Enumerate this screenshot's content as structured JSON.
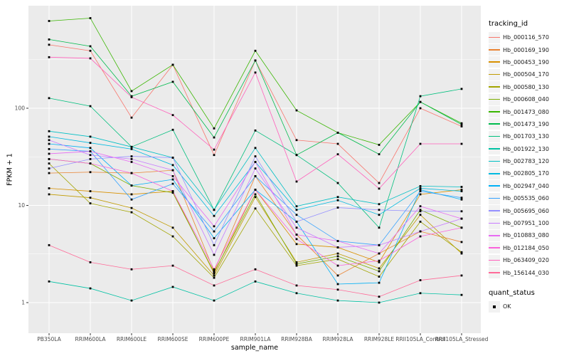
{
  "chart_data": {
    "type": "line",
    "title": "",
    "xlabel": "sample_name",
    "ylabel": "FPKM + 1",
    "y_scale": "log10",
    "y_ticks": [
      1,
      10,
      100
    ],
    "y_minor_ticks": [
      3.162,
      31.62,
      316.2
    ],
    "ylim": [
      1,
      1150
    ],
    "grid": "on",
    "legend_position": "right",
    "panel_bg": "#EBEBEB",
    "grid_color": "#FFFFFF",
    "marker": {
      "shape": "square",
      "color": "#000000",
      "legend_label": "OK"
    },
    "categories": [
      "PB350LA",
      "RRIM600LA",
      "RRIM600LE",
      "RRIM600SE",
      "RRIM600PE",
      "RRIM901LA",
      "RRIM928BA",
      "RRIM928LA",
      "RRIM928LE",
      "RRII105LA_Control",
      "RRII105LA_Stressed"
    ],
    "series": [
      {
        "name": "Hb_000116_570",
        "color": "#F8766D",
        "values": [
          450,
          390,
          80,
          280,
          33,
          310,
          47,
          43,
          17,
          100,
          65
        ]
      },
      {
        "name": "Hb_000169_190",
        "color": "#EA8331",
        "values": [
          21.5,
          22,
          21.5,
          23,
          2.1,
          20,
          5,
          1.9,
          3.2,
          5.4,
          4.2
        ]
      },
      {
        "name": "Hb_000453_190",
        "color": "#D89000",
        "values": [
          15,
          14,
          13,
          14,
          2.0,
          14.5,
          4.0,
          3.7,
          2.6,
          13,
          14.5
        ]
      },
      {
        "name": "Hb_000504_170",
        "color": "#C09B00",
        "values": [
          13,
          12,
          9.4,
          5.9,
          1.9,
          12.2,
          2.6,
          3.2,
          2.25,
          8,
          3.2
        ]
      },
      {
        "name": "Hb_000580_130",
        "color": "#A3A500",
        "values": [
          27,
          10.5,
          8.5,
          4.8,
          1.8,
          9.3,
          2.4,
          2.8,
          1.85,
          6.8,
          3.3
        ]
      },
      {
        "name": "Hb_000608_040",
        "color": "#7CAE00",
        "values": [
          30,
          27,
          16,
          13.5,
          2.05,
          13,
          2.5,
          3.0,
          2.1,
          9,
          5.9
        ]
      },
      {
        "name": "Hb_001473_080",
        "color": "#39B600",
        "values": [
          790,
          845,
          150,
          280,
          62,
          390,
          95,
          56,
          42,
          116,
          70
        ]
      },
      {
        "name": "Hb_001473_190",
        "color": "#00BB4E",
        "values": [
          510,
          434,
          133,
          187,
          50,
          310,
          33,
          56,
          33.6,
          116,
          68
        ]
      },
      {
        "name": "Hb_001703_130",
        "color": "#00BF7D",
        "values": [
          127,
          105,
          40,
          60,
          9,
          59,
          33,
          17,
          5.9,
          133,
          158
        ]
      },
      {
        "name": "Hb_001922_130",
        "color": "#00C1A3",
        "values": [
          1.65,
          1.4,
          1.05,
          1.45,
          1.05,
          1.65,
          1.25,
          1.05,
          1.0,
          1.25,
          1.2
        ]
      },
      {
        "name": "Hb_002783_120",
        "color": "#00BFC4",
        "values": [
          58,
          51,
          40,
          31,
          9,
          39,
          9.8,
          12.2,
          10.3,
          15.8,
          15.5
        ]
      },
      {
        "name": "Hb_002805_170",
        "color": "#00BAE0",
        "values": [
          51,
          44,
          38,
          26,
          7.8,
          28,
          9,
          11.3,
          8,
          15,
          14
        ]
      },
      {
        "name": "Hb_002947_040",
        "color": "#00B0F6",
        "values": [
          43,
          39,
          16,
          18.5,
          4.6,
          14.5,
          6.8,
          1.55,
          1.6,
          14.5,
          11.5
        ]
      },
      {
        "name": "Hb_005535_060",
        "color": "#35A2FF",
        "values": [
          38,
          36,
          11.5,
          16.7,
          5.4,
          20,
          8,
          4.3,
          3.9,
          14,
          12
        ]
      },
      {
        "name": "Hb_005695_060",
        "color": "#9590FF",
        "values": [
          24,
          30,
          32,
          31,
          3.9,
          32,
          6.8,
          9.5,
          9.0,
          8.7,
          8.7
        ]
      },
      {
        "name": "Hb_007951_100",
        "color": "#C77CFF",
        "values": [
          47,
          33,
          30,
          23,
          3.1,
          24,
          5.9,
          3.7,
          3.9,
          5.4,
          7.3
        ]
      },
      {
        "name": "Hb_010883_080",
        "color": "#E76BF3",
        "values": [
          34,
          36,
          28,
          20,
          6.1,
          28,
          5.0,
          4.3,
          3.2,
          9.8,
          7.3
        ]
      },
      {
        "name": "Hb_012184_050",
        "color": "#FA62DB",
        "values": [
          30,
          27,
          21.5,
          14,
          2.2,
          14.5,
          4.5,
          2.4,
          2.7,
          4.8,
          5.9
        ]
      },
      {
        "name": "Hb_063409_020",
        "color": "#FF62BC",
        "values": [
          335,
          326,
          130,
          85,
          37.5,
          233,
          17.6,
          33.6,
          14.9,
          43,
          43
        ]
      },
      {
        "name": "Hb_156144_030",
        "color": "#FF6A98",
        "values": [
          3.9,
          2.6,
          2.2,
          2.4,
          1.5,
          2.2,
          1.5,
          1.36,
          1.15,
          1.7,
          1.9
        ]
      }
    ]
  },
  "legend": {
    "tracking_title": "tracking_id",
    "quant_title": "quant_status",
    "quant_items": [
      {
        "label": "OK"
      }
    ]
  }
}
